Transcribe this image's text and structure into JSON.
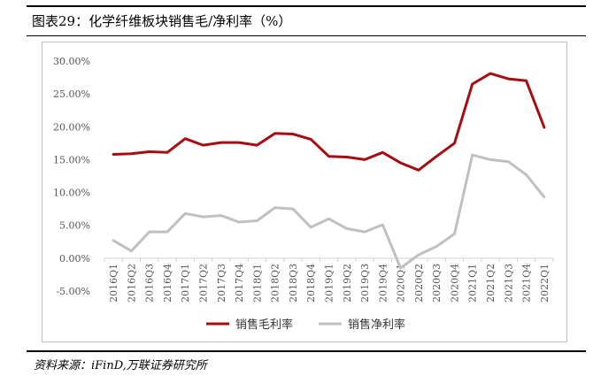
{
  "figure_title": "图表29：化学纤维板块销售毛/净利率（%）",
  "source": "资料来源：iFinD,万联证券研究所",
  "colors": {
    "gross": "#a50d12",
    "net": "#c0c0c0"
  },
  "chart_data": {
    "type": "line",
    "title": "",
    "xlabel": "",
    "ylabel": "",
    "ylim": [
      -5,
      30
    ],
    "yticks": [
      "30.00%",
      "25.00%",
      "20.00%",
      "15.00%",
      "10.00%",
      "5.00%",
      "0.00%",
      "-5.00%"
    ],
    "ytick_values": [
      30,
      25,
      20,
      15,
      10,
      5,
      0,
      -5
    ],
    "categories": [
      "2016Q1",
      "2016Q2",
      "2016Q3",
      "2016Q4",
      "2017Q1",
      "2017Q2",
      "2017Q3",
      "2017Q4",
      "2018Q1",
      "2018Q2",
      "2018Q3",
      "2018Q4",
      "2019Q1",
      "2019Q2",
      "2019Q3",
      "2019Q4",
      "2020Q1",
      "2020Q2",
      "2020Q3",
      "2020Q4",
      "2021Q1",
      "2021Q2",
      "2021Q3",
      "2021Q4",
      "2022Q1"
    ],
    "grid": false,
    "legend_position": "bottom",
    "series": [
      {
        "name": "销售毛利率",
        "values": [
          15.8,
          15.9,
          16.2,
          16.1,
          18.2,
          17.2,
          17.6,
          17.6,
          17.2,
          19.0,
          18.9,
          18.1,
          15.5,
          15.4,
          15.0,
          16.1,
          14.5,
          13.4,
          15.5,
          17.5,
          26.5,
          28.1,
          27.3,
          27.0,
          19.9
        ]
      },
      {
        "name": "销售净利率",
        "values": [
          2.7,
          1.1,
          4.0,
          4.0,
          6.8,
          6.3,
          6.5,
          5.5,
          5.7,
          7.7,
          7.5,
          4.7,
          6.0,
          4.5,
          4.0,
          5.1,
          -1.5,
          0.5,
          1.8,
          3.7,
          15.7,
          15.0,
          14.7,
          12.7,
          9.3
        ]
      }
    ]
  }
}
